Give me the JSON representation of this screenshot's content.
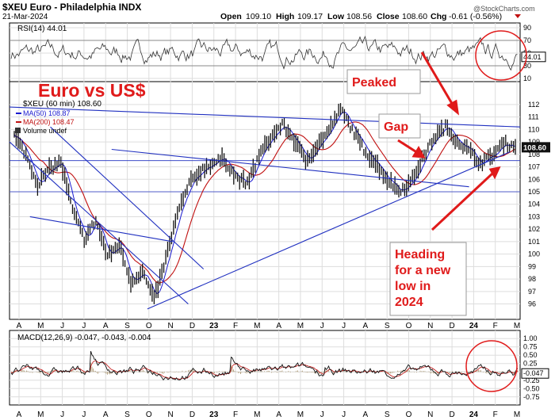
{
  "header": {
    "symbol_line": "$XEU Euro - Philadelphia INDX",
    "date": "21-Mar-2024",
    "open_label": "Open",
    "open": "109.10",
    "high_label": "High",
    "high": "109.17",
    "low_label": "Low",
    "low": "108.56",
    "close_label": "Close",
    "close": "108.60",
    "chg_label": "Chg",
    "chg": "-0.61 (-0.56%)",
    "watermark": "@StockCharts.com"
  },
  "chart_data": [
    {
      "type": "line",
      "title": "RSI(14) 44.01",
      "yticks": [
        "90",
        "70",
        "50",
        "30",
        "10"
      ],
      "ylim": [
        10,
        90
      ],
      "last_value": "44.01",
      "levels": [
        70,
        30
      ]
    },
    {
      "type": "line",
      "title": "$XEU (60 min) 108.60",
      "series": [
        {
          "name": "MA(50) 108.87",
          "color": "#1a1ad0"
        },
        {
          "name": "MA(200) 108.47",
          "color": "#c01010"
        },
        {
          "name": "Volume undef",
          "color": "#000000"
        }
      ],
      "yticks": [
        "112",
        "111",
        "110",
        "109",
        "108",
        "107",
        "106",
        "105",
        "104",
        "103",
        "102",
        "101",
        "100",
        "99",
        "98",
        "97",
        "96"
      ],
      "ylim": [
        95.4,
        113.2
      ],
      "x": [
        "A",
        "M",
        "J",
        "J",
        "A",
        "S",
        "O",
        "N",
        "D",
        "23",
        "F",
        "M",
        "A",
        "M",
        "J",
        "J",
        "A",
        "S",
        "O",
        "N",
        "D",
        "24",
        "F",
        "M"
      ],
      "price_points": [
        [
          "A",
          109.5
        ],
        [
          "M",
          108.0
        ],
        [
          "M",
          105.6
        ],
        [
          "J",
          106.8
        ],
        [
          "J",
          107.4
        ],
        [
          "J",
          103.5
        ],
        [
          "A",
          101.2
        ],
        [
          "A",
          102.7
        ],
        [
          "S",
          99.8
        ],
        [
          "S",
          100.8
        ],
        [
          "O",
          97.8
        ],
        [
          "O",
          98.6
        ],
        [
          "O",
          96.3
        ],
        [
          "N",
          99.6
        ],
        [
          "N",
          103.2
        ],
        [
          "D",
          105.6
        ],
        [
          "D",
          106.7
        ],
        [
          "23",
          107.3
        ],
        [
          "F",
          107.6
        ],
        [
          "F",
          106.2
        ],
        [
          "M",
          105.6
        ],
        [
          "M",
          107.9
        ],
        [
          "A",
          109.3
        ],
        [
          "A",
          110.4
        ],
        [
          "M",
          109.2
        ],
        [
          "M",
          107.5
        ],
        [
          "J",
          108.7
        ],
        [
          "J",
          109.9
        ],
        [
          "J",
          111.6
        ],
        [
          "A",
          110.0
        ],
        [
          "A",
          108.4
        ],
        [
          "S",
          107.3
        ],
        [
          "S",
          106.0
        ],
        [
          "O",
          105.1
        ],
        [
          "O",
          105.7
        ],
        [
          "N",
          107.6
        ],
        [
          "N",
          109.3
        ],
        [
          "D",
          110.2
        ],
        [
          "D",
          109.1
        ],
        [
          "24",
          108.3
        ],
        [
          "F",
          107.3
        ],
        [
          "F",
          107.9
        ],
        [
          "M",
          108.9
        ],
        [
          "M",
          108.6
        ]
      ],
      "last_value": "108.60"
    },
    {
      "type": "line",
      "title": "MACD(12,26,9) -0.047, -0.043, -0.004",
      "yticks": [
        "1.00",
        "0.75",
        "0.50",
        "0.25",
        "0.00",
        "-0.25",
        "-0.50",
        "-0.75"
      ],
      "ylim": [
        -0.85,
        1.1
      ],
      "last_value": "-0.047"
    }
  ],
  "annotations": {
    "title": "Euro vs US$",
    "peaked": "Peaked",
    "gap": "Gap",
    "heading": [
      "Heading",
      "for a new",
      "low in",
      "2024"
    ]
  },
  "xaxis_labels": [
    "A",
    "M",
    "J",
    "J",
    "A",
    "S",
    "O",
    "N",
    "D",
    "23",
    "F",
    "M",
    "A",
    "M",
    "J",
    "J",
    "A",
    "S",
    "O",
    "N",
    "D",
    "24",
    "F",
    "M"
  ],
  "colors": {
    "ma50": "#1a1ad0",
    "ma200": "#c01010",
    "annotation": "#e01a1a",
    "trendline": "#2030c0"
  }
}
